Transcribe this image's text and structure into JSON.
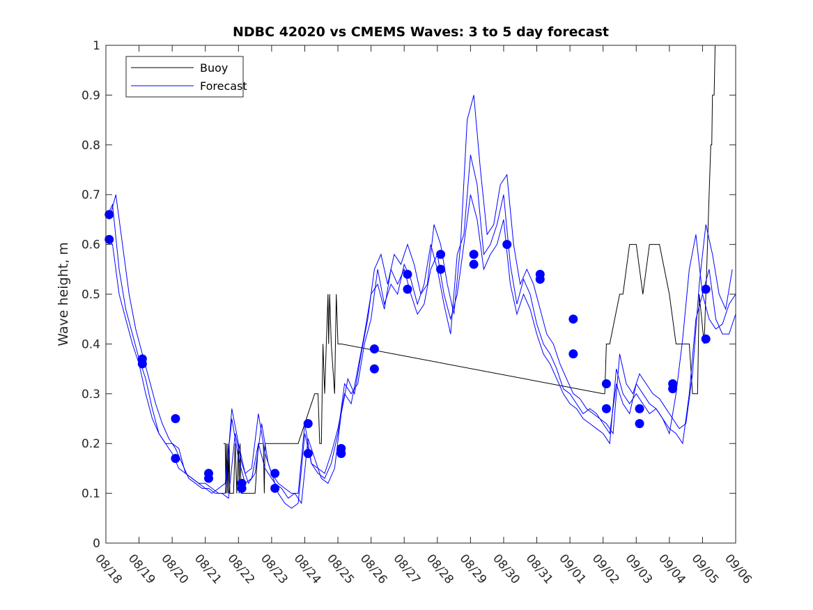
{
  "chart_data": {
    "type": "line",
    "title": "NDBC 42020 vs CMEMS Waves: 3 to 5 day forecast",
    "xlabel": "",
    "ylabel": "Wave height, m",
    "xlim": [
      0,
      19
    ],
    "ylim": [
      0,
      1
    ],
    "xticks": [
      0,
      1,
      2,
      3,
      4,
      5,
      6,
      7,
      8,
      9,
      10,
      11,
      12,
      13,
      14,
      15,
      16,
      17,
      18,
      19
    ],
    "xtick_labels": [
      "08/18",
      "08/19",
      "08/20",
      "08/21",
      "08/22",
      "08/23",
      "08/24",
      "08/25",
      "08/26",
      "08/27",
      "08/28",
      "08/29",
      "08/30",
      "08/31",
      "09/01",
      "09/02",
      "09/03",
      "09/04",
      "09/05",
      "09/06"
    ],
    "yticks": [
      0,
      0.1,
      0.2,
      0.3,
      0.4,
      0.5,
      0.6,
      0.7,
      0.8,
      0.9,
      1
    ],
    "ytick_labels": [
      "0",
      "0.1",
      "0.2",
      "0.3",
      "0.4",
      "0.5",
      "0.6",
      "0.7",
      "0.8",
      "0.9",
      "1"
    ],
    "legend": {
      "placement": "top-left",
      "entries": [
        {
          "label": "Buoy",
          "color": "#000000"
        },
        {
          "label": "Forecast",
          "color": "#0000ff"
        }
      ]
    },
    "colors": {
      "buoy": "#000000",
      "forecast": "#0000ff",
      "markers": "#0000ff",
      "axes": "#262626"
    },
    "series": [
      {
        "name": "Buoy",
        "x": [
          3.55,
          3.6,
          3.62,
          3.64,
          3.66,
          3.68,
          3.7,
          3.72,
          3.74,
          3.76,
          3.8,
          3.85,
          3.9,
          3.95,
          4.0,
          4.02,
          4.05,
          4.08,
          4.1,
          4.12,
          4.15,
          4.2,
          4.3,
          4.5,
          4.6,
          4.75,
          4.78,
          4.8,
          4.82,
          5.0,
          5.1,
          5.2,
          5.5,
          5.8,
          6.3,
          6.4,
          6.45,
          6.5,
          6.55,
          6.6,
          6.65,
          6.7,
          6.72,
          6.75,
          6.8,
          6.9,
          6.95,
          7.0,
          7.05,
          7.1,
          15.0,
          15.05,
          15.1,
          15.2,
          15.5,
          15.6,
          15.8,
          16.0,
          16.2,
          16.4,
          16.45,
          16.6,
          16.7,
          17.0,
          17.2,
          17.6,
          17.7,
          17.85,
          17.9,
          18.05,
          18.1,
          18.15,
          18.2,
          18.25,
          18.28,
          18.3,
          18.35,
          18.38,
          18.4,
          18.45
        ],
        "values": [
          0.2,
          0.2,
          0.1,
          0.2,
          0.1,
          0.2,
          0.1,
          0.2,
          0.1,
          0.1,
          0.1,
          0.1,
          0.2,
          0.1,
          0.2,
          0.1,
          0.2,
          0.1,
          0.1,
          0.1,
          0.1,
          0.1,
          0.1,
          0.1,
          0.2,
          0.2,
          0.1,
          0.2,
          0.2,
          0.2,
          0.2,
          0.2,
          0.2,
          0.2,
          0.3,
          0.3,
          0.2,
          0.2,
          0.4,
          0.3,
          0.4,
          0.5,
          0.4,
          0.5,
          0.4,
          0.3,
          0.5,
          0.4,
          0.4,
          0.4,
          0.3,
          0.3,
          0.4,
          0.4,
          0.5,
          0.5,
          0.6,
          0.6,
          0.5,
          0.6,
          0.6,
          0.6,
          0.6,
          0.5,
          0.4,
          0.4,
          0.3,
          0.3,
          0.5,
          0.4,
          0.5,
          0.6,
          0.7,
          0.8,
          0.8,
          0.9,
          0.9,
          1.0,
          1.0,
          1.05
        ]
      },
      {
        "name": "Forecast",
        "x": [
          0.05,
          0.2,
          0.4,
          0.6,
          0.8,
          1.0,
          1.2,
          1.4,
          1.6,
          1.8,
          2.0,
          2.2,
          2.4,
          2.6,
          2.8,
          3.0,
          3.2,
          3.4,
          3.6,
          3.8,
          4.0,
          4.2,
          4.4,
          4.6,
          4.8,
          5.0,
          5.1,
          5.2,
          5.4,
          5.6,
          5.8,
          6.0,
          6.1,
          6.2,
          6.4,
          6.6,
          6.8,
          7.0,
          7.2,
          7.4,
          7.6,
          7.8,
          8.0,
          8.2,
          8.4,
          8.6,
          8.8,
          9.0,
          9.2,
          9.4,
          9.6,
          9.8,
          10.0,
          10.2,
          10.4,
          10.6,
          10.8,
          11.0,
          11.2,
          11.4,
          11.6,
          11.8,
          12.0,
          12.2,
          12.4,
          12.6,
          12.8,
          13.0,
          13.2,
          13.4,
          13.6,
          13.8,
          14.0,
          14.2,
          14.4,
          14.6,
          14.8,
          15.0,
          15.2,
          15.4,
          15.6,
          15.8,
          16.0,
          16.2,
          16.4,
          16.6,
          16.8,
          17.0,
          17.2,
          17.4,
          17.6,
          17.8,
          18.0,
          18.2,
          18.4,
          18.6,
          18.8,
          19.0
        ],
        "values": [
          0.66,
          0.68,
          0.55,
          0.47,
          0.42,
          0.37,
          0.33,
          0.27,
          0.22,
          0.2,
          0.18,
          0.15,
          0.14,
          0.13,
          0.12,
          0.11,
          0.1,
          0.11,
          0.12,
          0.25,
          0.17,
          0.12,
          0.13,
          0.2,
          0.15,
          0.13,
          0.12,
          0.1,
          0.08,
          0.07,
          0.08,
          0.22,
          0.19,
          0.16,
          0.14,
          0.13,
          0.16,
          0.22,
          0.32,
          0.3,
          0.32,
          0.4,
          0.45,
          0.55,
          0.48,
          0.52,
          0.5,
          0.56,
          0.53,
          0.48,
          0.52,
          0.6,
          0.55,
          0.48,
          0.42,
          0.58,
          0.62,
          0.78,
          0.72,
          0.58,
          0.6,
          0.64,
          0.7,
          0.56,
          0.48,
          0.53,
          0.5,
          0.44,
          0.4,
          0.38,
          0.35,
          0.31,
          0.3,
          0.28,
          0.26,
          0.27,
          0.26,
          0.24,
          0.22,
          0.32,
          0.28,
          0.26,
          0.32,
          0.3,
          0.28,
          0.27,
          0.25,
          0.22,
          0.3,
          0.41,
          0.55,
          0.62,
          0.5,
          0.45,
          0.43,
          0.44,
          0.48,
          0.5
        ]
      },
      {
        "name": "Forecast",
        "x": [
          0.05,
          0.2,
          0.4,
          0.6,
          0.8,
          1.0,
          1.2,
          1.4,
          1.6,
          1.8,
          2.0,
          2.2,
          2.4,
          2.6,
          2.8,
          3.0,
          3.2,
          3.4,
          3.6,
          3.8,
          4.0,
          4.2,
          4.4,
          4.6,
          4.8,
          5.0,
          5.2,
          5.4,
          5.6,
          5.8,
          6.0,
          6.2,
          6.4,
          6.6,
          6.8,
          7.0,
          7.2,
          7.4,
          7.6,
          7.8,
          8.0,
          8.2,
          8.4,
          8.6,
          8.8,
          9.0,
          9.2,
          9.4,
          9.6,
          9.8,
          10.0,
          10.2,
          10.4,
          10.6,
          10.8,
          11.0,
          11.2,
          11.4,
          11.6,
          11.8,
          12.0,
          12.2,
          12.4,
          12.6,
          12.8,
          13.0,
          13.2,
          13.4,
          13.6,
          13.8,
          14.0,
          14.2,
          14.4,
          14.6,
          14.8,
          15.0,
          15.2,
          15.4,
          15.6,
          15.8,
          16.0,
          16.2,
          16.4,
          16.6,
          16.8,
          17.0,
          17.2,
          17.4,
          17.6,
          17.8,
          18.0,
          18.2,
          18.4,
          18.6,
          18.8,
          19.0
        ],
        "values": [
          0.61,
          0.6,
          0.5,
          0.45,
          0.4,
          0.36,
          0.3,
          0.25,
          0.22,
          0.2,
          0.2,
          0.19,
          0.14,
          0.13,
          0.12,
          0.12,
          0.11,
          0.1,
          0.1,
          0.27,
          0.2,
          0.14,
          0.15,
          0.26,
          0.18,
          0.14,
          0.12,
          0.11,
          0.1,
          0.1,
          0.24,
          0.16,
          0.15,
          0.14,
          0.18,
          0.23,
          0.3,
          0.28,
          0.35,
          0.42,
          0.5,
          0.52,
          0.47,
          0.55,
          0.52,
          0.55,
          0.5,
          0.46,
          0.48,
          0.55,
          0.58,
          0.5,
          0.45,
          0.5,
          0.6,
          0.7,
          0.65,
          0.55,
          0.58,
          0.6,
          0.65,
          0.52,
          0.46,
          0.5,
          0.47,
          0.42,
          0.38,
          0.36,
          0.33,
          0.3,
          0.28,
          0.27,
          0.25,
          0.24,
          0.23,
          0.22,
          0.2,
          0.35,
          0.3,
          0.28,
          0.3,
          0.28,
          0.26,
          0.27,
          0.25,
          0.23,
          0.22,
          0.2,
          0.3,
          0.45,
          0.5,
          0.55,
          0.45,
          0.42,
          0.42,
          0.46
        ]
      },
      {
        "name": "Forecast",
        "x": [
          0.1,
          0.3,
          0.5,
          0.7,
          0.9,
          1.1,
          1.3,
          1.5,
          1.7,
          1.9,
          2.1,
          2.3,
          2.5,
          2.7,
          2.9,
          3.1,
          3.3,
          3.5,
          3.7,
          3.9,
          4.1,
          4.3,
          4.5,
          4.7,
          4.9,
          5.1,
          5.3,
          5.5,
          5.7,
          5.9,
          6.1,
          6.3,
          6.5,
          6.7,
          6.9,
          7.1,
          7.3,
          7.5,
          7.7,
          7.9,
          8.1,
          8.3,
          8.5,
          8.7,
          8.9,
          9.1,
          9.3,
          9.5,
          9.7,
          9.9,
          10.1,
          10.3,
          10.5,
          10.7,
          10.9,
          11.1,
          11.3,
          11.5,
          11.7,
          11.9,
          12.1,
          12.3,
          12.5,
          12.7,
          12.9,
          13.1,
          13.3,
          13.5,
          13.7,
          13.9,
          14.1,
          14.3,
          14.5,
          14.7,
          14.9,
          15.1,
          15.3,
          15.5,
          15.7,
          15.9,
          16.1,
          16.3,
          16.5,
          16.7,
          16.9,
          17.1,
          17.3,
          17.5,
          17.7,
          17.9,
          18.1,
          18.3,
          18.5,
          18.7,
          18.9
        ],
        "values": [
          0.65,
          0.7,
          0.6,
          0.5,
          0.43,
          0.38,
          0.33,
          0.28,
          0.24,
          0.21,
          0.19,
          0.16,
          0.13,
          0.12,
          0.11,
          0.11,
          0.1,
          0.1,
          0.09,
          0.22,
          0.16,
          0.12,
          0.14,
          0.24,
          0.16,
          0.12,
          0.11,
          0.09,
          0.1,
          0.08,
          0.21,
          0.17,
          0.13,
          0.12,
          0.15,
          0.26,
          0.33,
          0.3,
          0.38,
          0.45,
          0.55,
          0.58,
          0.52,
          0.58,
          0.56,
          0.6,
          0.56,
          0.5,
          0.52,
          0.64,
          0.6,
          0.52,
          0.46,
          0.6,
          0.85,
          0.9,
          0.75,
          0.62,
          0.64,
          0.72,
          0.74,
          0.6,
          0.52,
          0.55,
          0.52,
          0.47,
          0.42,
          0.4,
          0.36,
          0.33,
          0.3,
          0.29,
          0.27,
          0.26,
          0.25,
          0.24,
          0.22,
          0.38,
          0.32,
          0.3,
          0.34,
          0.32,
          0.3,
          0.29,
          0.27,
          0.25,
          0.23,
          0.24,
          0.34,
          0.52,
          0.64,
          0.58,
          0.5,
          0.47,
          0.55
        ]
      }
    ],
    "markers": {
      "name": "Forecast start points",
      "x": [
        0.1,
        0.1,
        1.1,
        1.1,
        2.1,
        2.1,
        3.1,
        3.1,
        4.1,
        4.1,
        5.1,
        5.1,
        6.1,
        6.1,
        7.1,
        7.1,
        8.1,
        8.1,
        9.1,
        9.1,
        10.1,
        10.1,
        11.1,
        11.1,
        12.1,
        13.1,
        13.1,
        14.1,
        14.1,
        15.1,
        15.1,
        16.1,
        16.1,
        17.1,
        17.1,
        18.1,
        18.1
      ],
      "values": [
        0.66,
        0.61,
        0.37,
        0.36,
        0.25,
        0.17,
        0.14,
        0.13,
        0.12,
        0.11,
        0.14,
        0.11,
        0.24,
        0.18,
        0.19,
        0.18,
        0.39,
        0.35,
        0.54,
        0.51,
        0.58,
        0.55,
        0.58,
        0.56,
        0.6,
        0.54,
        0.53,
        0.45,
        0.38,
        0.32,
        0.27,
        0.27,
        0.24,
        0.32,
        0.31,
        0.51,
        0.41
      ]
    }
  }
}
